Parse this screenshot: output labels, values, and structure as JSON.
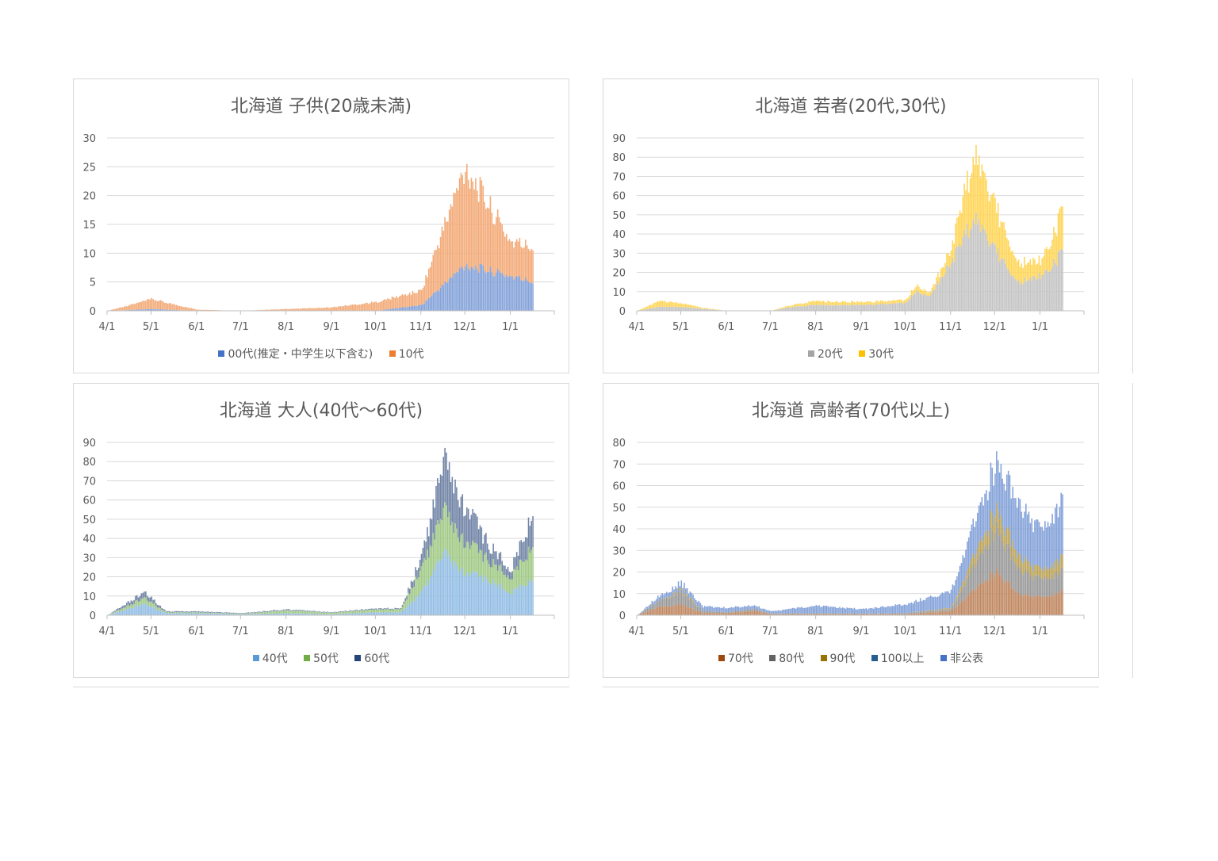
{
  "chart_data": [
    {
      "type": "bar",
      "stacked": true,
      "title": "北海道 子供(20歳未満)",
      "xlabel": "",
      "ylabel": "",
      "ylim": [
        0,
        30
      ],
      "yticks": [
        0,
        5,
        10,
        15,
        20,
        25,
        30
      ],
      "x_ticks": [
        "4/1",
        "5/1",
        "6/1",
        "7/1",
        "8/1",
        "9/1",
        "10/1",
        "11/1",
        "12/1",
        "1/1"
      ],
      "grid": true,
      "legend_position": "bottom",
      "x_anchor_days": [
        0,
        30,
        61,
        91,
        122,
        153,
        183,
        214,
        244,
        275,
        290
      ],
      "series": [
        {
          "name": "00代(推定・中学生以下含む)",
          "color": "#4472c4",
          "anchors": [
            0,
            0.3,
            0,
            0,
            0,
            0,
            0,
            1,
            8,
            6,
            5
          ]
        },
        {
          "name": "10代",
          "color": "#ed7d31",
          "anchors": [
            0,
            1.7,
            0.2,
            0,
            0.3,
            0.6,
            1.5,
            2.5,
            17,
            6,
            6
          ]
        }
      ]
    },
    {
      "type": "bar",
      "stacked": true,
      "title": "北海道 若者(20代,30代)",
      "xlabel": "",
      "ylabel": "",
      "ylim": [
        0,
        90
      ],
      "yticks": [
        0,
        10,
        20,
        30,
        40,
        50,
        60,
        70,
        80,
        90
      ],
      "x_ticks": [
        "4/1",
        "5/1",
        "6/1",
        "7/1",
        "8/1",
        "9/1",
        "10/1",
        "11/1",
        "12/1",
        "1/1"
      ],
      "grid": true,
      "legend_position": "bottom",
      "x_anchor_days": [
        0,
        15,
        30,
        45,
        61,
        91,
        105,
        122,
        153,
        183,
        190,
        200,
        214,
        230,
        244,
        260,
        275,
        290
      ],
      "series": [
        {
          "name": "20代",
          "color": "#a5a5a5",
          "anchors": [
            0,
            2,
            2,
            1,
            0,
            0,
            2,
            3,
            3,
            4,
            10,
            8,
            25,
            48,
            32,
            15,
            18,
            30
          ]
        },
        {
          "name": "30代",
          "color": "#ffc000",
          "anchors": [
            0,
            3,
            2,
            0.5,
            0,
            0,
            1,
            2,
            1.5,
            1.5,
            3,
            2,
            7,
            33,
            23,
            10,
            8,
            21
          ]
        }
      ]
    },
    {
      "type": "bar",
      "stacked": true,
      "title": "北海道 大人(40代～60代)",
      "xlabel": "",
      "ylabel": "",
      "ylim": [
        0,
        90
      ],
      "yticks": [
        0,
        10,
        20,
        30,
        40,
        50,
        60,
        70,
        80,
        90
      ],
      "x_ticks": [
        "4/1",
        "5/1",
        "6/1",
        "7/1",
        "8/1",
        "9/1",
        "10/1",
        "11/1",
        "12/1",
        "1/1"
      ],
      "grid": true,
      "legend_position": "bottom",
      "x_anchor_days": [
        0,
        25,
        40,
        61,
        91,
        122,
        153,
        183,
        200,
        214,
        230,
        244,
        260,
        275,
        290
      ],
      "series": [
        {
          "name": "40代",
          "color": "#5b9bd5",
          "anchors": [
            0,
            6,
            1,
            1,
            0.5,
            1,
            0.5,
            1.5,
            1.5,
            12,
            32,
            22,
            18,
            12,
            18
          ]
        },
        {
          "name": "50代",
          "color": "#70ad47",
          "anchors": [
            0,
            3,
            0.5,
            0.5,
            0.3,
            1.5,
            0.8,
            1.5,
            1.5,
            12,
            22,
            16,
            10,
            8,
            17
          ]
        },
        {
          "name": "60代",
          "color": "#264478",
          "anchors": [
            0,
            3,
            0.5,
            0.5,
            0.3,
            0.5,
            0.3,
            0.5,
            0.5,
            6,
            26,
            18,
            8,
            4,
            16
          ]
        }
      ]
    },
    {
      "type": "bar",
      "stacked": true,
      "title": "北海道 高齢者(70代以上)",
      "xlabel": "",
      "ylabel": "",
      "ylim": [
        0,
        80
      ],
      "yticks": [
        0,
        10,
        20,
        30,
        40,
        50,
        60,
        70,
        80
      ],
      "x_ticks": [
        "4/1",
        "5/1",
        "6/1",
        "7/1",
        "8/1",
        "9/1",
        "10/1",
        "11/1",
        "12/1",
        "1/1"
      ],
      "grid": true,
      "legend_position": "bottom",
      "x_anchor_days": [
        0,
        15,
        30,
        45,
        61,
        80,
        91,
        122,
        153,
        183,
        214,
        244,
        260,
        275,
        290
      ],
      "series": [
        {
          "name": "70代",
          "color": "#9e480e",
          "anchors": [
            0,
            4,
            5,
            1,
            1,
            2,
            0.5,
            0.5,
            0.5,
            0.5,
            2,
            20,
            10,
            8,
            11
          ]
        },
        {
          "name": "80代",
          "color": "#636363",
          "anchors": [
            0,
            3,
            6,
            1,
            0.5,
            1,
            0.3,
            0.5,
            0.3,
            0.5,
            1,
            20,
            12,
            8,
            10
          ]
        },
        {
          "name": "90代",
          "color": "#997300",
          "anchors": [
            0,
            0,
            1,
            0,
            0,
            0,
            0,
            0,
            0,
            0,
            0.5,
            8,
            6,
            4,
            6
          ]
        },
        {
          "name": "100以上",
          "color": "#255e91",
          "anchors": [
            0,
            0,
            0,
            0,
            0,
            0,
            0,
            0,
            0,
            0,
            0,
            0,
            0,
            0,
            0
          ]
        },
        {
          "name": "非公表",
          "color": "#4472c4",
          "anchors": [
            0,
            2,
            3,
            2,
            2,
            1.5,
            1,
            3.5,
            2,
            4,
            8,
            21,
            25,
            18,
            27
          ]
        }
      ]
    }
  ]
}
